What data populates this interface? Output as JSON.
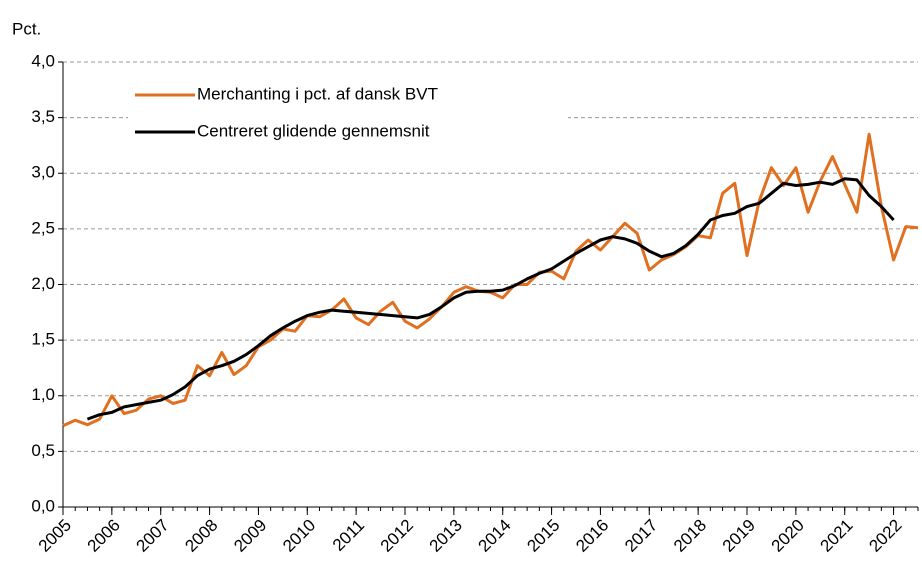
{
  "chart_data": {
    "type": "line",
    "y_label": "Pct.",
    "x": [
      2005,
      2005.25,
      2005.5,
      2005.75,
      2006,
      2006.25,
      2006.5,
      2006.75,
      2007,
      2007.25,
      2007.5,
      2007.75,
      2008,
      2008.25,
      2008.5,
      2008.75,
      2009,
      2009.25,
      2009.5,
      2009.75,
      2010,
      2010.25,
      2010.5,
      2010.75,
      2011,
      2011.25,
      2011.5,
      2011.75,
      2012,
      2012.25,
      2012.5,
      2012.75,
      2013,
      2013.25,
      2013.5,
      2013.75,
      2014,
      2014.25,
      2014.5,
      2014.75,
      2015,
      2015.25,
      2015.5,
      2015.75,
      2016,
      2016.25,
      2016.5,
      2016.75,
      2017,
      2017.25,
      2017.5,
      2017.75,
      2018,
      2018.25,
      2018.5,
      2018.75,
      2019,
      2019.25,
      2019.5,
      2019.75,
      2020,
      2020.25,
      2020.5,
      2020.75,
      2021,
      2021.25,
      2021.5,
      2021.75,
      2022,
      2022.25,
      2022.5
    ],
    "series": [
      {
        "name": "Merchanting i pct. af dansk BVT",
        "color": "#e07020",
        "values": [
          0.73,
          0.78,
          0.74,
          0.79,
          1.0,
          0.84,
          0.87,
          0.97,
          1.0,
          0.93,
          0.96,
          1.27,
          1.18,
          1.39,
          1.19,
          1.27,
          1.44,
          1.5,
          1.6,
          1.58,
          1.72,
          1.71,
          1.77,
          1.87,
          1.7,
          1.64,
          1.76,
          1.84,
          1.67,
          1.61,
          1.69,
          1.8,
          1.93,
          1.98,
          1.94,
          1.93,
          1.88,
          2.0,
          2.0,
          2.11,
          2.12,
          2.05,
          2.3,
          2.4,
          2.31,
          2.43,
          2.55,
          2.46,
          2.13,
          2.22,
          2.27,
          2.34,
          2.44,
          2.42,
          2.82,
          2.91,
          2.26,
          2.75,
          3.05,
          2.89,
          3.05,
          2.65,
          2.93,
          3.15,
          2.9,
          2.65,
          3.35,
          2.7,
          2.22,
          2.52,
          2.51
        ]
      },
      {
        "name": "Centreret glidende gennemsnit",
        "color": "#000000",
        "values": [
          null,
          null,
          0.79,
          0.83,
          0.85,
          0.9,
          0.92,
          0.94,
          0.96,
          1.01,
          1.08,
          1.18,
          1.24,
          1.27,
          1.31,
          1.37,
          1.45,
          1.54,
          1.61,
          1.67,
          1.72,
          1.75,
          1.77,
          1.76,
          1.75,
          1.74,
          1.73,
          1.72,
          1.71,
          1.7,
          1.73,
          1.8,
          1.88,
          1.93,
          1.94,
          1.94,
          1.95,
          1.99,
          2.05,
          2.1,
          2.14,
          2.21,
          2.28,
          2.34,
          2.4,
          2.43,
          2.41,
          2.37,
          2.3,
          2.25,
          2.28,
          2.35,
          2.45,
          2.58,
          2.62,
          2.64,
          2.7,
          2.73,
          2.82,
          2.91,
          2.89,
          2.9,
          2.92,
          2.9,
          2.95,
          2.94,
          2.8,
          2.7,
          2.58,
          null,
          null
        ]
      }
    ],
    "xlim": [
      2005,
      2022.5
    ],
    "xticks": [
      2005,
      2006,
      2007,
      2008,
      2009,
      2010,
      2011,
      2012,
      2013,
      2014,
      2015,
      2016,
      2017,
      2018,
      2019,
      2020,
      2021,
      2022
    ],
    "ylim": [
      0,
      4
    ],
    "yticks": [
      {
        "value": 0,
        "label": "0,0"
      },
      {
        "value": 0.5,
        "label": "0,5"
      },
      {
        "value": 1,
        "label": "1,0"
      },
      {
        "value": 1.5,
        "label": "1,5"
      },
      {
        "value": 2,
        "label": "2,0"
      },
      {
        "value": 2.5,
        "label": "2,5"
      },
      {
        "value": 3,
        "label": "3,0"
      },
      {
        "value": 3.5,
        "label": "3,5"
      },
      {
        "value": 4,
        "label": "4,0"
      }
    ],
    "grid": true
  }
}
